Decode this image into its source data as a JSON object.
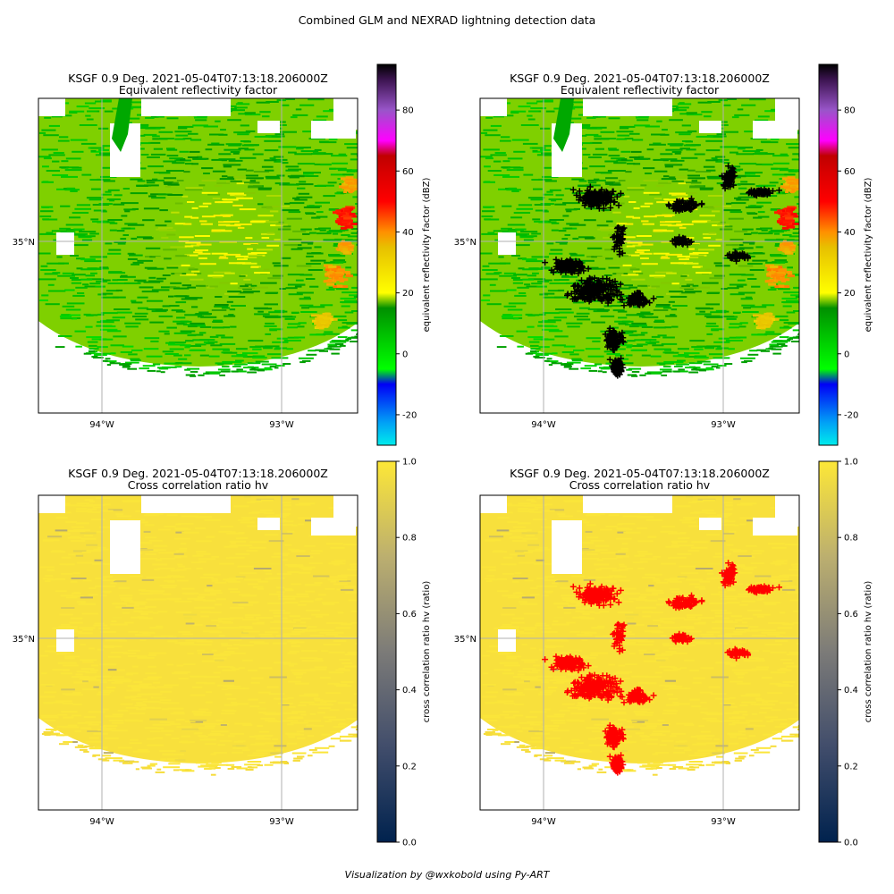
{
  "figure": {
    "suptitle": "Combined GLM and NEXRAD lightning detection data",
    "credit": "Visualization by @wxkobold using Py-ART"
  },
  "colors": {
    "refl_colormap": "pyart NWSRef-style",
    "crosscorr_colormap": "cividis",
    "lightning_top": "#000000",
    "lightning_bottom": "#ff0000",
    "gridline": "#b0b0b0"
  },
  "chart_data": [
    {
      "type": "heatmap",
      "panel": "top-left",
      "title": "KSGF 0.9 Deg. 2021-05-04T07:13:18.206000Z",
      "subtitle": "Equivalent reflectivity factor",
      "x_ticks": [
        "94°W",
        "93°W"
      ],
      "y_ticks": [
        "35°N"
      ],
      "grid": true,
      "colorbar": {
        "label": "equivalent reflectivity factor (dBZ)",
        "range": [
          -30,
          95
        ],
        "ticks": [
          "-20",
          "0",
          "20",
          "40",
          "60",
          "80"
        ]
      },
      "overlay": null
    },
    {
      "type": "heatmap",
      "panel": "top-right",
      "title": "KSGF 0.9 Deg. 2021-05-04T07:13:18.206000Z",
      "subtitle": "Equivalent reflectivity factor",
      "x_ticks": [
        "94°W",
        "93°W"
      ],
      "y_ticks": [
        "35°N"
      ],
      "grid": true,
      "colorbar": {
        "label": "equivalent reflectivity factor (dBZ)",
        "range": [
          -30,
          95
        ],
        "ticks": [
          "-20",
          "0",
          "20",
          "40",
          "60",
          "80"
        ]
      },
      "overlay": {
        "marker": "+",
        "color": "#000000"
      }
    },
    {
      "type": "heatmap",
      "panel": "bottom-left",
      "title": "KSGF 0.9 Deg. 2021-05-04T07:13:18.206000Z",
      "subtitle": "Cross correlation ratio hv",
      "x_ticks": [
        "94°W",
        "93°W"
      ],
      "y_ticks": [
        "35°N"
      ],
      "grid": true,
      "colorbar": {
        "label": "cross correlation ratio hv (ratio)",
        "range": [
          0,
          1
        ],
        "ticks": [
          "0.0",
          "0.2",
          "0.4",
          "0.6",
          "0.8",
          "1.0"
        ]
      },
      "overlay": null
    },
    {
      "type": "heatmap",
      "panel": "bottom-right",
      "title": "KSGF 0.9 Deg. 2021-05-04T07:13:18.206000Z",
      "subtitle": "Cross correlation ratio hv",
      "x_ticks": [
        "94°W",
        "93°W"
      ],
      "y_ticks": [
        "35°N"
      ],
      "grid": true,
      "colorbar": {
        "label": "cross correlation ratio hv (ratio)",
        "range": [
          0,
          1
        ],
        "ticks": [
          "0.0",
          "0.2",
          "0.4",
          "0.6",
          "0.8",
          "1.0"
        ]
      },
      "overlay": {
        "marker": "+",
        "color": "#ff0000"
      }
    }
  ]
}
